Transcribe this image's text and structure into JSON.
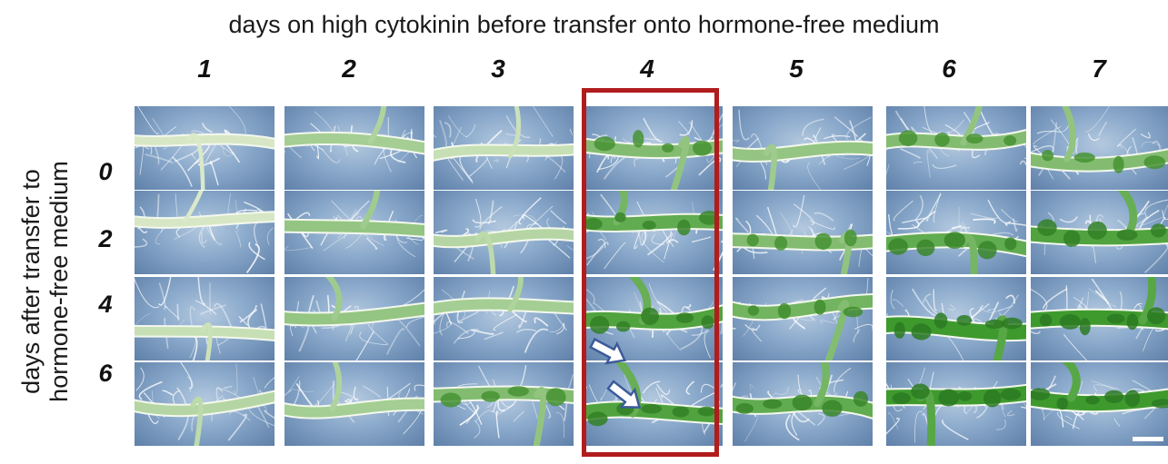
{
  "title": "days on high cytokinin before transfer onto hormone-free medium",
  "y_title": [
    "days after transfer to",
    "hormone-free medium"
  ],
  "columns": [
    "1",
    "2",
    "3",
    "4",
    "5",
    "6",
    "7"
  ],
  "rows": [
    "0",
    "2",
    "4",
    "6"
  ],
  "colors": {
    "highlight": "#b11c1c",
    "background_blue": "#8aa9cb",
    "green_tissue": "#3f9a2e",
    "pale_tissue": "#e8f0d6",
    "root_hair": "#ffffff",
    "arrow": "#3c5a9a"
  },
  "greenness": [
    [
      0.1,
      0.4,
      0.2,
      0.6,
      0.5,
      0.6,
      0.6
    ],
    [
      0.1,
      0.5,
      0.3,
      0.8,
      0.6,
      0.8,
      0.9
    ],
    [
      0.2,
      0.5,
      0.4,
      0.9,
      0.7,
      1.0,
      1.0
    ],
    [
      0.3,
      0.4,
      0.6,
      0.9,
      0.8,
      1.0,
      1.0
    ]
  ],
  "highlighted_column": "4",
  "icons": {
    "arrow": "arrow-icon",
    "scale_bar": "scale-bar"
  }
}
